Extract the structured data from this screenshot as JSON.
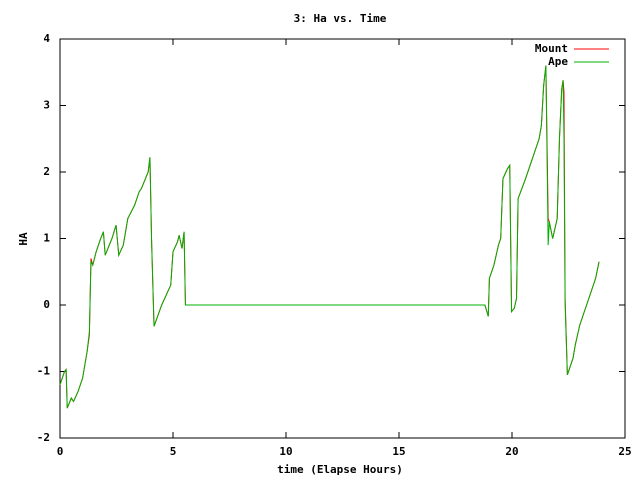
{
  "chart_data": {
    "type": "line",
    "title": "3: Ha vs. Time",
    "xlabel": "time (Elapse Hours)",
    "ylabel": "HA",
    "x": [
      0,
      0.2,
      0.27,
      0.32,
      0.5,
      0.6,
      0.8,
      1.0,
      1.1,
      1.2,
      1.3,
      1.37,
      1.45,
      1.6,
      1.8,
      1.92,
      2.0,
      2.3,
      2.48,
      2.6,
      2.8,
      3.0,
      3.3,
      3.5,
      3.6,
      3.9,
      3.98,
      4.05,
      4.1,
      4.16,
      4.5,
      4.9,
      5.0,
      5.2,
      5.27,
      5.4,
      5.49,
      5.55,
      18.8,
      18.95,
      19.0,
      19.2,
      19.4,
      19.5,
      19.6,
      19.8,
      19.9,
      19.98,
      20.1,
      20.2,
      20.27,
      20.6,
      20.9,
      21.2,
      21.3,
      21.4,
      21.5,
      21.6,
      21.65,
      21.8,
      22.0,
      22.1,
      22.2,
      22.26,
      22.3,
      22.35,
      22.45,
      22.55,
      22.7,
      22.8,
      23.0,
      23.2,
      23.4,
      23.7,
      23.85
    ],
    "series": [
      {
        "name": "Mount",
        "color": "#ff0000",
        "values": [
          -1.2,
          -1.0,
          -0.97,
          -1.55,
          -1.4,
          -1.45,
          -1.3,
          -1.1,
          -0.9,
          -0.7,
          -0.45,
          0.7,
          0.6,
          0.8,
          1.0,
          1.1,
          0.75,
          1.0,
          1.2,
          0.75,
          0.9,
          1.3,
          1.5,
          1.7,
          1.75,
          2.0,
          2.22,
          1.0,
          0.4,
          -0.32,
          0.0,
          0.3,
          0.8,
          0.95,
          1.05,
          0.85,
          1.1,
          0.0,
          0.0,
          -0.17,
          0.4,
          0.6,
          0.9,
          1.0,
          1.9,
          2.05,
          2.1,
          -0.1,
          -0.05,
          0.1,
          1.6,
          1.9,
          2.2,
          2.5,
          2.7,
          3.3,
          3.6,
          1.3,
          1.25,
          1.0,
          1.3,
          2.5,
          3.25,
          3.38,
          3.2,
          0.1,
          -1.05,
          -0.95,
          -0.8,
          -0.6,
          -0.3,
          -0.1,
          0.1,
          0.4,
          0.65
        ]
      },
      {
        "name": "Ape",
        "color": "#00b000",
        "values": [
          -1.2,
          -1.0,
          -0.97,
          -1.55,
          -1.4,
          -1.45,
          -1.3,
          -1.1,
          -0.9,
          -0.7,
          -0.4,
          0.65,
          0.6,
          0.8,
          1.0,
          1.1,
          0.75,
          1.0,
          1.2,
          0.75,
          0.9,
          1.3,
          1.5,
          1.7,
          1.75,
          2.0,
          2.22,
          1.0,
          0.4,
          -0.32,
          0.0,
          0.3,
          0.8,
          0.95,
          1.05,
          0.85,
          1.1,
          0.0,
          0.0,
          -0.17,
          0.4,
          0.6,
          0.9,
          1.0,
          1.9,
          2.05,
          2.1,
          -0.1,
          -0.05,
          0.1,
          1.6,
          1.9,
          2.2,
          2.5,
          2.7,
          3.3,
          3.6,
          0.9,
          1.25,
          1.0,
          1.3,
          2.5,
          3.25,
          3.38,
          2.5,
          0.0,
          -1.05,
          -0.95,
          -0.8,
          -0.6,
          -0.3,
          -0.1,
          0.1,
          0.4,
          0.65
        ]
      }
    ],
    "xlim": [
      0,
      25
    ],
    "xticks": [
      0,
      5,
      10,
      15,
      20,
      25
    ],
    "ylim": [
      -2,
      4
    ],
    "yticks": [
      -2,
      -1,
      0,
      1,
      2,
      3,
      4
    ],
    "grid": false,
    "legend": "top-right"
  }
}
